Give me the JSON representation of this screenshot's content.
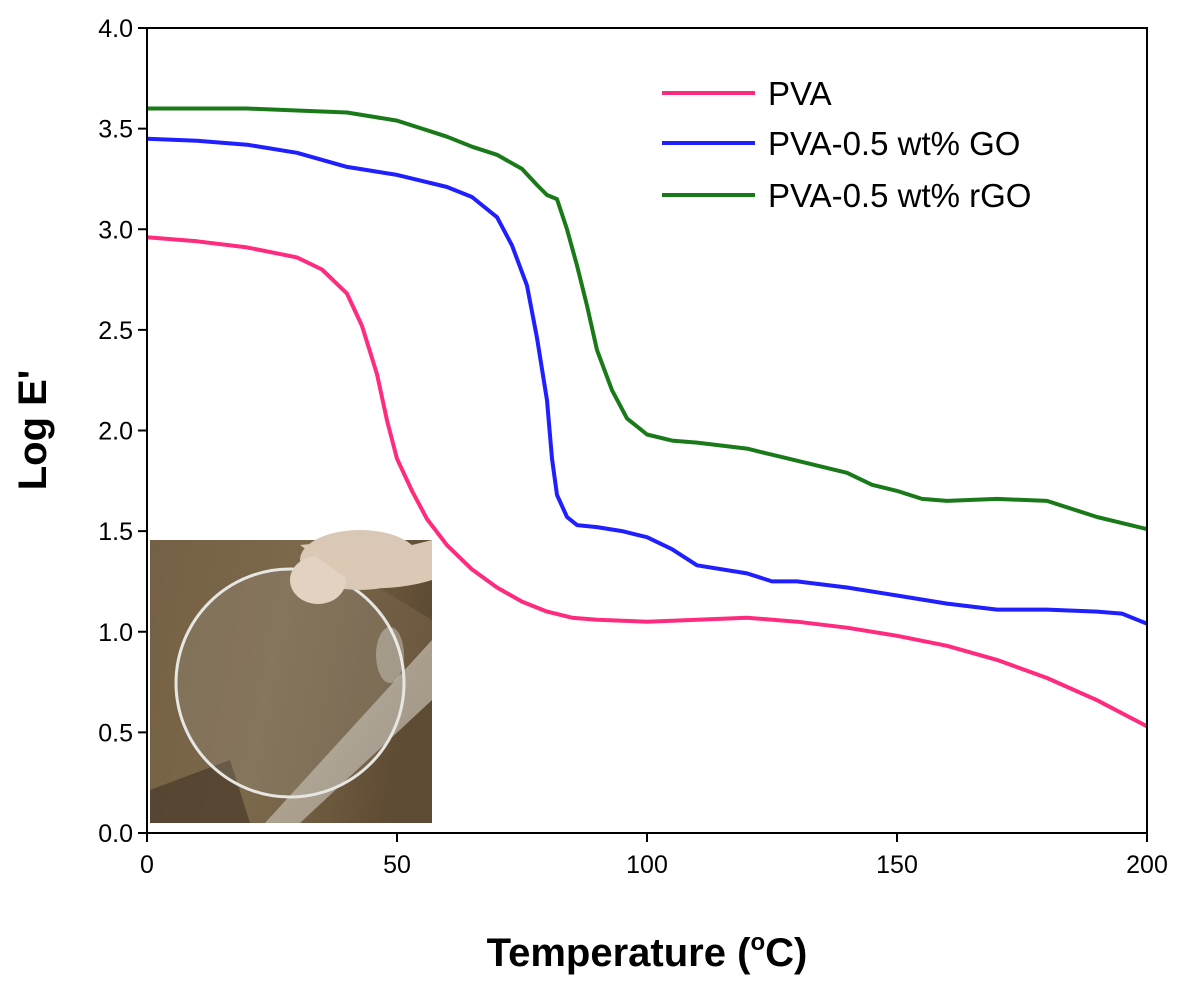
{
  "chart_data": {
    "type": "line",
    "title": "",
    "xlabel": "Temperature (",
    "xlabel_sup": "o",
    "xlabel_tail": "C)",
    "ylabel": "Log E'",
    "xlim": [
      0,
      200
    ],
    "ylim": [
      0,
      4.0
    ],
    "xticks": [
      "0",
      "50",
      "100",
      "150",
      "200"
    ],
    "yticks": [
      "0.0",
      "0.5",
      "1.0",
      "1.5",
      "2.0",
      "2.5",
      "3.0",
      "3.5",
      "4.0"
    ],
    "grid": false,
    "legend_position": "top-right",
    "inset": "photograph of a transparent circular PVA film held between fingers",
    "series": [
      {
        "name": "PVA",
        "color": "#ff2b7f",
        "points": [
          [
            0,
            2.96
          ],
          [
            10,
            2.94
          ],
          [
            20,
            2.91
          ],
          [
            30,
            2.86
          ],
          [
            35,
            2.8
          ],
          [
            40,
            2.68
          ],
          [
            43,
            2.52
          ],
          [
            46,
            2.28
          ],
          [
            48,
            2.05
          ],
          [
            50,
            1.86
          ],
          [
            53,
            1.7
          ],
          [
            56,
            1.56
          ],
          [
            60,
            1.43
          ],
          [
            65,
            1.31
          ],
          [
            70,
            1.22
          ],
          [
            75,
            1.15
          ],
          [
            80,
            1.1
          ],
          [
            85,
            1.07
          ],
          [
            90,
            1.06
          ],
          [
            100,
            1.05
          ],
          [
            110,
            1.06
          ],
          [
            120,
            1.07
          ],
          [
            130,
            1.05
          ],
          [
            140,
            1.02
          ],
          [
            150,
            0.98
          ],
          [
            160,
            0.93
          ],
          [
            170,
            0.86
          ],
          [
            180,
            0.77
          ],
          [
            190,
            0.66
          ],
          [
            200,
            0.53
          ]
        ]
      },
      {
        "name": "PVA-0.5 wt% GO",
        "color": "#1f1fff",
        "points": [
          [
            0,
            3.45
          ],
          [
            10,
            3.44
          ],
          [
            20,
            3.42
          ],
          [
            30,
            3.38
          ],
          [
            40,
            3.31
          ],
          [
            45,
            3.29
          ],
          [
            50,
            3.27
          ],
          [
            55,
            3.24
          ],
          [
            60,
            3.21
          ],
          [
            65,
            3.16
          ],
          [
            70,
            3.06
          ],
          [
            73,
            2.92
          ],
          [
            76,
            2.72
          ],
          [
            78,
            2.46
          ],
          [
            80,
            2.15
          ],
          [
            81,
            1.86
          ],
          [
            82,
            1.68
          ],
          [
            84,
            1.57
          ],
          [
            86,
            1.53
          ],
          [
            90,
            1.52
          ],
          [
            95,
            1.5
          ],
          [
            100,
            1.47
          ],
          [
            105,
            1.41
          ],
          [
            110,
            1.33
          ],
          [
            120,
            1.29
          ],
          [
            125,
            1.25
          ],
          [
            130,
            1.25
          ],
          [
            140,
            1.22
          ],
          [
            150,
            1.18
          ],
          [
            160,
            1.14
          ],
          [
            170,
            1.11
          ],
          [
            180,
            1.11
          ],
          [
            190,
            1.1
          ],
          [
            195,
            1.09
          ],
          [
            200,
            1.04
          ]
        ]
      },
      {
        "name": "PVA-0.5 wt% rGO",
        "color": "#1a7a1a",
        "points": [
          [
            0,
            3.6
          ],
          [
            10,
            3.6
          ],
          [
            20,
            3.6
          ],
          [
            30,
            3.59
          ],
          [
            40,
            3.58
          ],
          [
            50,
            3.54
          ],
          [
            55,
            3.5
          ],
          [
            60,
            3.46
          ],
          [
            65,
            3.41
          ],
          [
            70,
            3.37
          ],
          [
            75,
            3.3
          ],
          [
            78,
            3.22
          ],
          [
            80,
            3.17
          ],
          [
            82,
            3.15
          ],
          [
            84,
            3.0
          ],
          [
            86,
            2.82
          ],
          [
            88,
            2.62
          ],
          [
            90,
            2.4
          ],
          [
            93,
            2.2
          ],
          [
            96,
            2.06
          ],
          [
            100,
            1.98
          ],
          [
            105,
            1.95
          ],
          [
            110,
            1.94
          ],
          [
            120,
            1.91
          ],
          [
            125,
            1.88
          ],
          [
            130,
            1.85
          ],
          [
            140,
            1.79
          ],
          [
            145,
            1.73
          ],
          [
            150,
            1.7
          ],
          [
            155,
            1.66
          ],
          [
            160,
            1.65
          ],
          [
            170,
            1.66
          ],
          [
            180,
            1.65
          ],
          [
            190,
            1.57
          ],
          [
            200,
            1.51
          ]
        ]
      }
    ]
  }
}
